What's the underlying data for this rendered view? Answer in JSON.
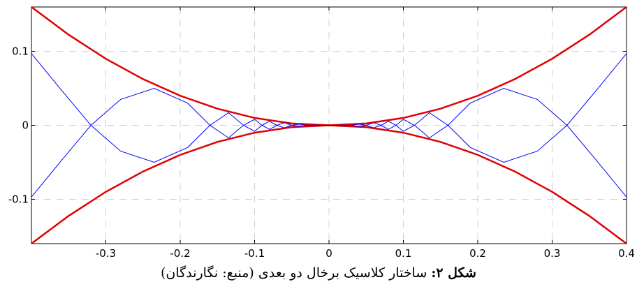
{
  "chart_data": {
    "type": "line",
    "title": "",
    "xlabel": "",
    "ylabel": "",
    "xlim": [
      -0.4,
      0.4
    ],
    "ylim": [
      -0.16,
      0.16
    ],
    "x_ticks": [
      -0.3,
      -0.2,
      -0.1,
      0,
      0.1,
      0.2,
      0.3,
      0.4
    ],
    "x_tick_labels": [
      "-0.3",
      "-0.2",
      "-0.1",
      "0",
      "0.1",
      "0.2",
      "0.3",
      "0.4"
    ],
    "y_ticks": [
      -0.1,
      0,
      0.1
    ],
    "y_tick_labels": [
      "-0.1",
      "0",
      "0.1"
    ],
    "grid": true,
    "legend": "none",
    "series": [
      {
        "kind": "envelope",
        "color": "#e00000",
        "x": [
          -0.4,
          -0.35,
          -0.3,
          -0.25,
          -0.2,
          -0.15,
          -0.1,
          -0.05,
          0,
          0.05,
          0.1,
          0.15,
          0.2,
          0.25,
          0.3,
          0.35,
          0.4
        ],
        "y_upper": [
          0.16,
          0.1225,
          0.09,
          0.0625,
          0.04,
          0.0225,
          0.01,
          0.0025,
          0,
          0.0025,
          0.01,
          0.0225,
          0.04,
          0.0625,
          0.09,
          0.1225,
          0.16
        ],
        "y_lower": [
          -0.16,
          -0.1225,
          -0.09,
          -0.0625,
          -0.04,
          -0.0225,
          -0.01,
          -0.0025,
          0,
          -0.0025,
          -0.01,
          -0.0225,
          -0.04,
          -0.0625,
          -0.09,
          -0.1225,
          -0.16
        ]
      },
      {
        "kind": "oscillation",
        "color": "#0000ff",
        "x": [
          -0.4,
          -0.36,
          -0.32,
          -0.28,
          -0.235,
          -0.19,
          -0.16,
          -0.135,
          -0.115,
          -0.1,
          -0.09,
          -0.08,
          -0.07,
          -0.06,
          -0.05,
          -0.04,
          -0.03,
          -0.02,
          -0.01,
          0,
          0.01,
          0.02,
          0.03,
          0.04,
          0.05,
          0.06,
          0.07,
          0.08,
          0.09,
          0.1,
          0.115,
          0.135,
          0.16,
          0.19,
          0.235,
          0.28,
          0.32,
          0.36,
          0.4
        ],
        "y": [
          0.097,
          0.048,
          0,
          -0.035,
          -0.05,
          -0.03,
          0,
          0.017,
          0,
          -0.008,
          0,
          0.0055,
          0,
          -0.0035,
          0,
          0.0016,
          0,
          -0.0004,
          0,
          0,
          0,
          0.0004,
          0,
          -0.0016,
          0,
          0.0035,
          0,
          -0.0055,
          0,
          0.008,
          0,
          -0.017,
          0,
          0.03,
          0.05,
          0.035,
          0,
          -0.048,
          -0.097
        ]
      }
    ]
  },
  "caption": {
    "label": "شکل ۲:",
    "text": " ساختار کلاسیک برخال دو بعدی (منبع: نگارندگان)"
  }
}
